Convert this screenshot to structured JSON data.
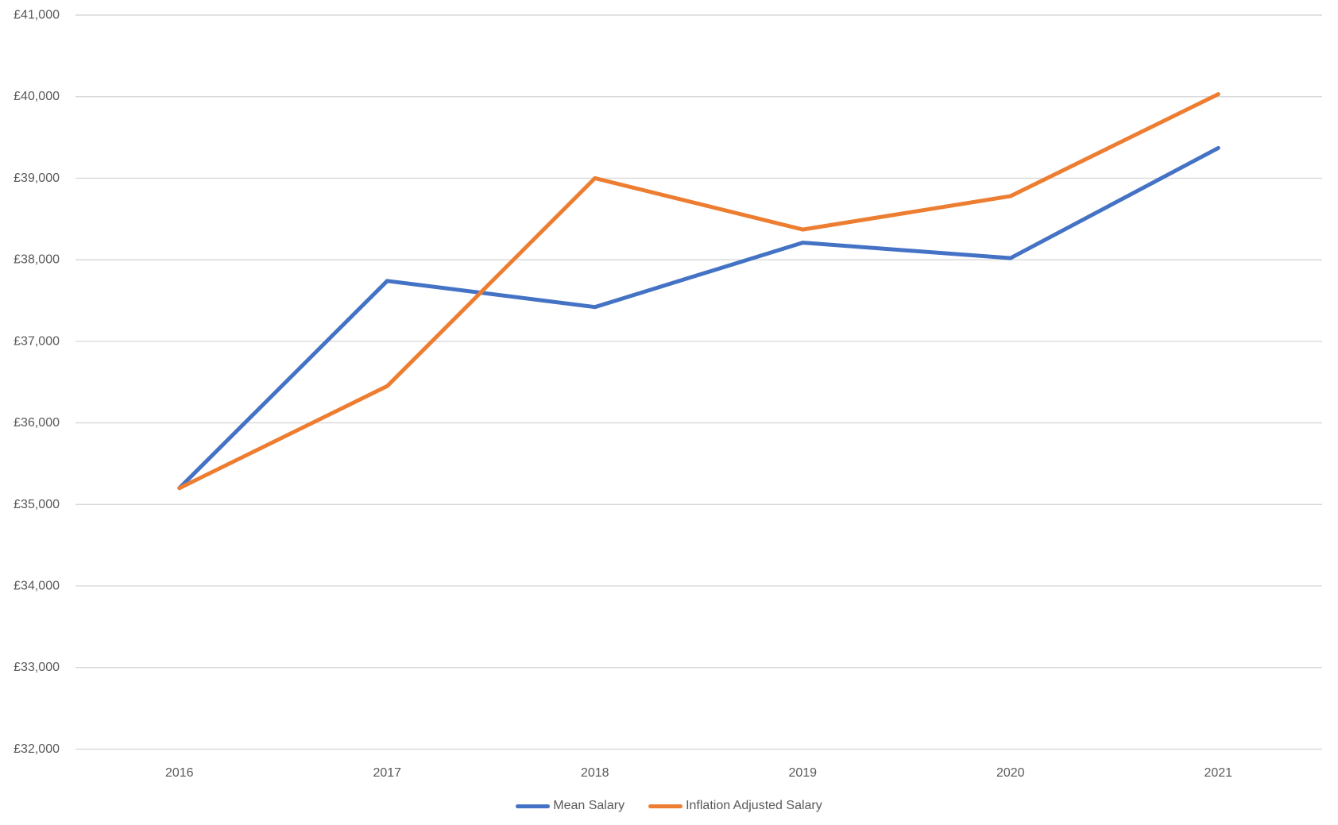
{
  "chart_data": {
    "type": "line",
    "title": "",
    "categories": [
      "2016",
      "2017",
      "2018",
      "2019",
      "2020",
      "2021"
    ],
    "series": [
      {
        "name": "Mean Salary",
        "color": "#4472C4",
        "values": [
          35200,
          37740,
          37420,
          38210,
          38020,
          39370
        ]
      },
      {
        "name": "Inflation Adjusted Salary",
        "color": "#ED7D31",
        "values": [
          35200,
          36450,
          39000,
          38370,
          38780,
          40030
        ]
      }
    ],
    "xlabel": "",
    "ylabel": "",
    "ylim": [
      32000,
      41000
    ],
    "ytick_step": 1000,
    "ytick_prefix": "£",
    "ytick_labels": [
      "£32,000",
      "£33,000",
      "£34,000",
      "£35,000",
      "£36,000",
      "£37,000",
      "£38,000",
      "£39,000",
      "£40,000",
      "£41,000"
    ],
    "grid": "horizontal",
    "legend_position": "bottom",
    "axis_text_color": "#595959",
    "gridline_color": "#D9D9D9",
    "background_color": "#FFFFFF"
  }
}
